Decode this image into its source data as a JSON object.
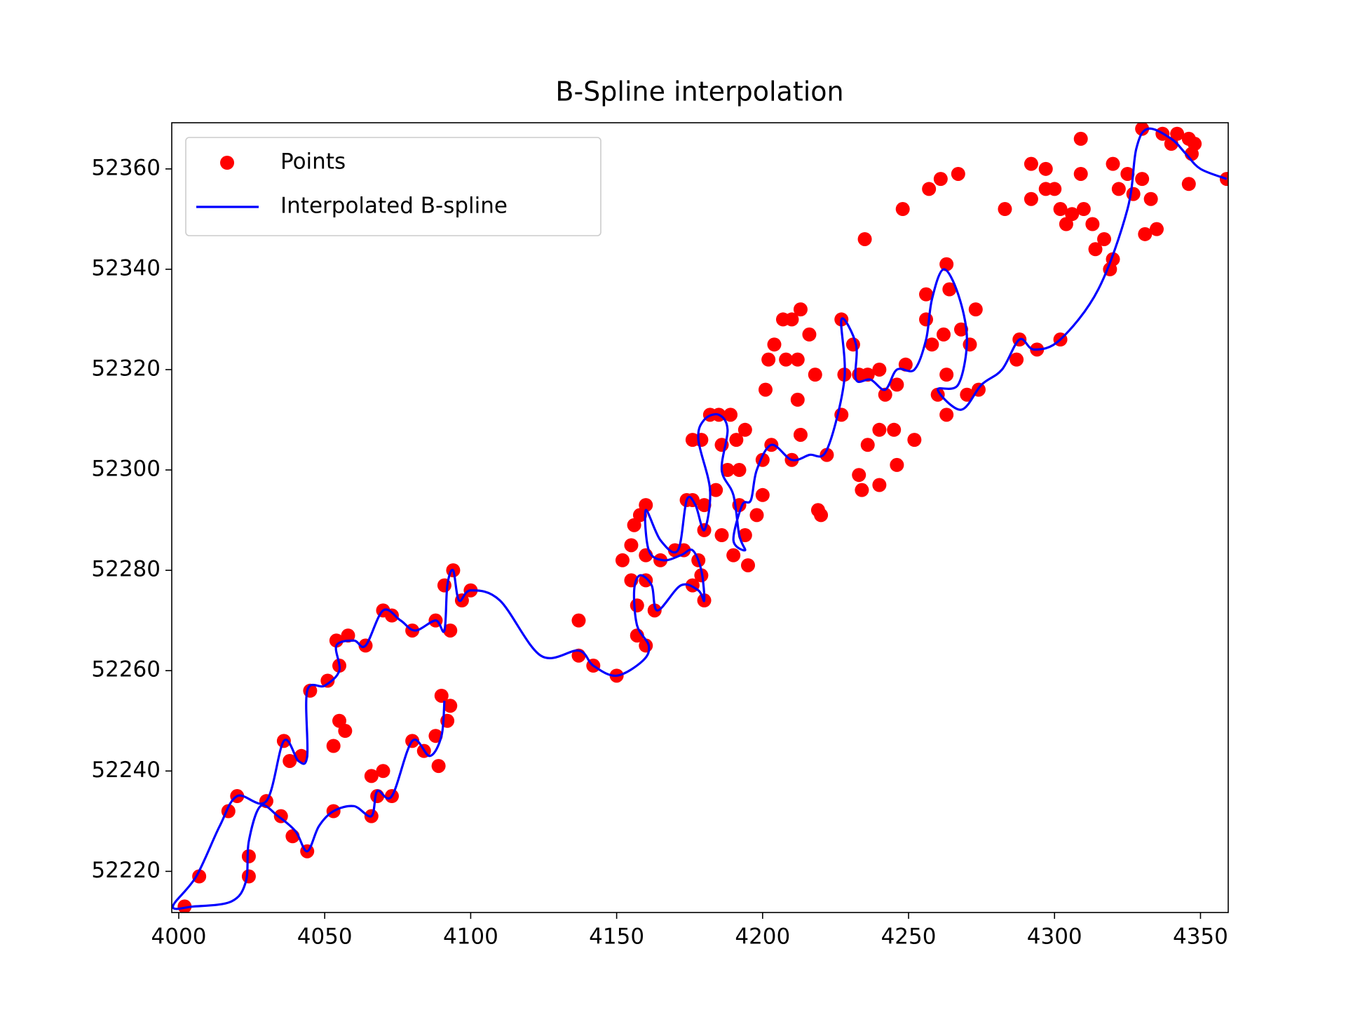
{
  "chart_data": {
    "type": "line",
    "title": "B-Spline interpolation",
    "xlim": [
      3997.6,
      4359.5
    ],
    "ylim": [
      52211.8,
      52369.2
    ],
    "xticks": [
      4000,
      4050,
      4100,
      4150,
      4200,
      4250,
      4300,
      4350
    ],
    "yticks": [
      52220,
      52240,
      52260,
      52280,
      52300,
      52320,
      52340,
      52360
    ],
    "legend": "upper left",
    "series": [
      {
        "name": "Points",
        "color": "#ff0000",
        "style": "markers",
        "x": [
          4002,
          4007,
          4017,
          4020,
          4030,
          4035,
          4039,
          4044,
          4036,
          4038,
          4042,
          4045,
          4051,
          4053,
          4055,
          4057,
          4054,
          4058,
          4064,
          4055,
          4024,
          4024,
          4053,
          4066,
          4068,
          4070,
          4066,
          4073,
          4080,
          4084,
          4088,
          4089,
          4090,
          4092,
          4093,
          4070,
          4073,
          4080,
          4088,
          4093,
          4091,
          4094,
          4097,
          4100,
          4137,
          4137,
          4142,
          4150,
          4160,
          4157,
          4157,
          4155,
          4160,
          4163,
          4152,
          4155,
          4156,
          4158,
          4160,
          4160,
          4165,
          4170,
          4173,
          4176,
          4180,
          4179,
          4178,
          4180,
          4180,
          4174,
          4176,
          4176,
          4179,
          4182,
          4185,
          4189,
          4186,
          4191,
          4194,
          4184,
          4188,
          4192,
          4186,
          4192,
          4194,
          4195,
          4190,
          4200,
          4198,
          4200,
          4203,
          4210,
          4201,
          4202,
          4204,
          4207,
          4210,
          4213,
          4216,
          4212,
          4208,
          4212,
          4218,
          4213,
          4222,
          4219,
          4220,
          4227,
          4228,
          4227,
          4231,
          4233,
          4236,
          4240,
          4242,
          4246,
          4249,
          4233,
          4234,
          4240,
          4236,
          4240,
          4245,
          4246,
          4252,
          4235,
          4248,
          4257,
          4261,
          4267,
          4256,
          4256,
          4258,
          4262,
          4263,
          4264,
          4268,
          4271,
          4273,
          4263,
          4263,
          4260,
          4270,
          4274,
          4283,
          4287,
          4288,
          4292,
          4292,
          4294,
          4297,
          4297,
          4300,
          4302,
          4304,
          4306,
          4309,
          4309,
          4302,
          4310,
          4313,
          4314,
          4317,
          4319,
          4320,
          4320,
          4322,
          4325,
          4327,
          4330,
          4330,
          4331,
          4335,
          4333,
          4337,
          4340,
          4342,
          4346,
          4347,
          4348,
          4346,
          4359
        ],
        "y": [
          52213,
          52219,
          52232,
          52235,
          52234,
          52231,
          52227,
          52224,
          52246,
          52242,
          52243,
          52256,
          52258,
          52245,
          52250,
          52248,
          52266,
          52267,
          52265,
          52261,
          52223,
          52219,
          52232,
          52231,
          52235,
          52240,
          52239,
          52235,
          52246,
          52244,
          52247,
          52241,
          52255,
          52250,
          52253,
          52272,
          52271,
          52268,
          52270,
          52268,
          52277,
          52280,
          52274,
          52276,
          52270,
          52263,
          52261,
          52259,
          52265,
          52267,
          52273,
          52278,
          52278,
          52272,
          52282,
          52285,
          52289,
          52291,
          52293,
          52283,
          52282,
          52284,
          52284,
          52277,
          52274,
          52279,
          52282,
          52288,
          52293,
          52294,
          52294,
          52306,
          52306,
          52311,
          52311,
          52311,
          52305,
          52306,
          52308,
          52296,
          52300,
          52300,
          52287,
          52293,
          52287,
          52281,
          52283,
          52295,
          52291,
          52302,
          52305,
          52302,
          52316,
          52322,
          52325,
          52330,
          52330,
          52332,
          52327,
          52322,
          52322,
          52314,
          52319,
          52307,
          52303,
          52292,
          52291,
          52311,
          52319,
          52330,
          52325,
          52319,
          52319,
          52320,
          52315,
          52317,
          52321,
          52299,
          52296,
          52297,
          52305,
          52308,
          52308,
          52301,
          52306,
          52346,
          52352,
          52356,
          52358,
          52359,
          52335,
          52330,
          52325,
          52327,
          52341,
          52336,
          52328,
          52325,
          52332,
          52319,
          52311,
          52315,
          52315,
          52316,
          52352,
          52322,
          52326,
          52354,
          52361,
          52324,
          52360,
          52356,
          52356,
          52352,
          52349,
          52351,
          52366,
          52359,
          52326,
          52352,
          52349,
          52344,
          52346,
          52340,
          52342,
          52361,
          52356,
          52359,
          52355,
          52358,
          52368,
          52347,
          52348,
          52354,
          52367,
          52365,
          52367,
          52366,
          52363,
          52365,
          52357,
          52358
        ]
      },
      {
        "name": "Interpolated B-spline",
        "color": "#0000ff",
        "style": "line",
        "x": [
          4091,
          4090,
          4086,
          4080,
          4073,
          4068,
          4066,
          4060,
          4053,
          4048,
          4044,
          4040,
          4034,
          4028,
          4024,
          4023,
          4018,
          4005,
          3998,
          4006,
          4014,
          4020,
          4030,
          4036,
          4041,
          4044,
          4044,
          4050,
          4055,
          4054,
          4060,
          4064,
          4070,
          4076,
          4081,
          4088,
          4091,
          4092,
          4094,
          4096,
          4100,
          4110,
          4124,
          4137,
          4142,
          4150,
          4159,
          4161,
          4157,
          4156,
          4158,
          4162,
          4164,
          4172,
          4178,
          4180,
          4179,
          4176,
          4172,
          4166,
          4161,
          4160,
          4165,
          4171,
          4174,
          4177,
          4180,
          4182,
          4178,
          4180,
          4185,
          4188,
          4186,
          4190,
          4192,
          4194,
          4190,
          4193,
          4196,
          4198,
          4203,
          4210,
          4216,
          4222,
          4228,
          4227,
          4232,
          4232,
          4237,
          4242,
          4246,
          4252,
          4256,
          4258,
          4262,
          4267,
          4270,
          4267,
          4260,
          4268,
          4275,
          4282,
          4288,
          4293,
          4302,
          4315,
          4325,
          4328,
          4332,
          4340,
          4345,
          4350,
          4359
        ],
        "y": [
          52254,
          52247,
          52243,
          52246,
          52235,
          52236,
          52231,
          52233,
          52232,
          52229,
          52224,
          52228,
          52231,
          52233,
          52226,
          52218,
          52214,
          52213,
          52213,
          52219,
          52229,
          52235,
          52234,
          52246,
          52242,
          52243,
          52256,
          52257,
          52260,
          52265,
          52266,
          52265,
          52272,
          52270,
          52268,
          52270,
          52268,
          52277,
          52280,
          52274,
          52276,
          52274,
          52263,
          52264,
          52261,
          52259,
          52262,
          52265,
          52269,
          52276,
          52279,
          52277,
          52272,
          52277,
          52276,
          52274,
          52280,
          52284,
          52283,
          52282,
          52284,
          52292,
          52286,
          52284,
          52294,
          52293,
          52288,
          52296,
          52306,
          52310,
          52311,
          52308,
          52300,
          52295,
          52287,
          52284,
          52286,
          52293,
          52294,
          52300,
          52305,
          52302,
          52303,
          52304,
          52318,
          52330,
          52325,
          52318,
          52318,
          52316,
          52320,
          52320,
          52326,
          52334,
          52340,
          52335,
          52326,
          52317,
          52316,
          52312,
          52317,
          52320,
          52326,
          52324,
          52326,
          52336,
          52352,
          52364,
          52368,
          52366,
          52363,
          52360,
          52358
        ]
      }
    ]
  }
}
